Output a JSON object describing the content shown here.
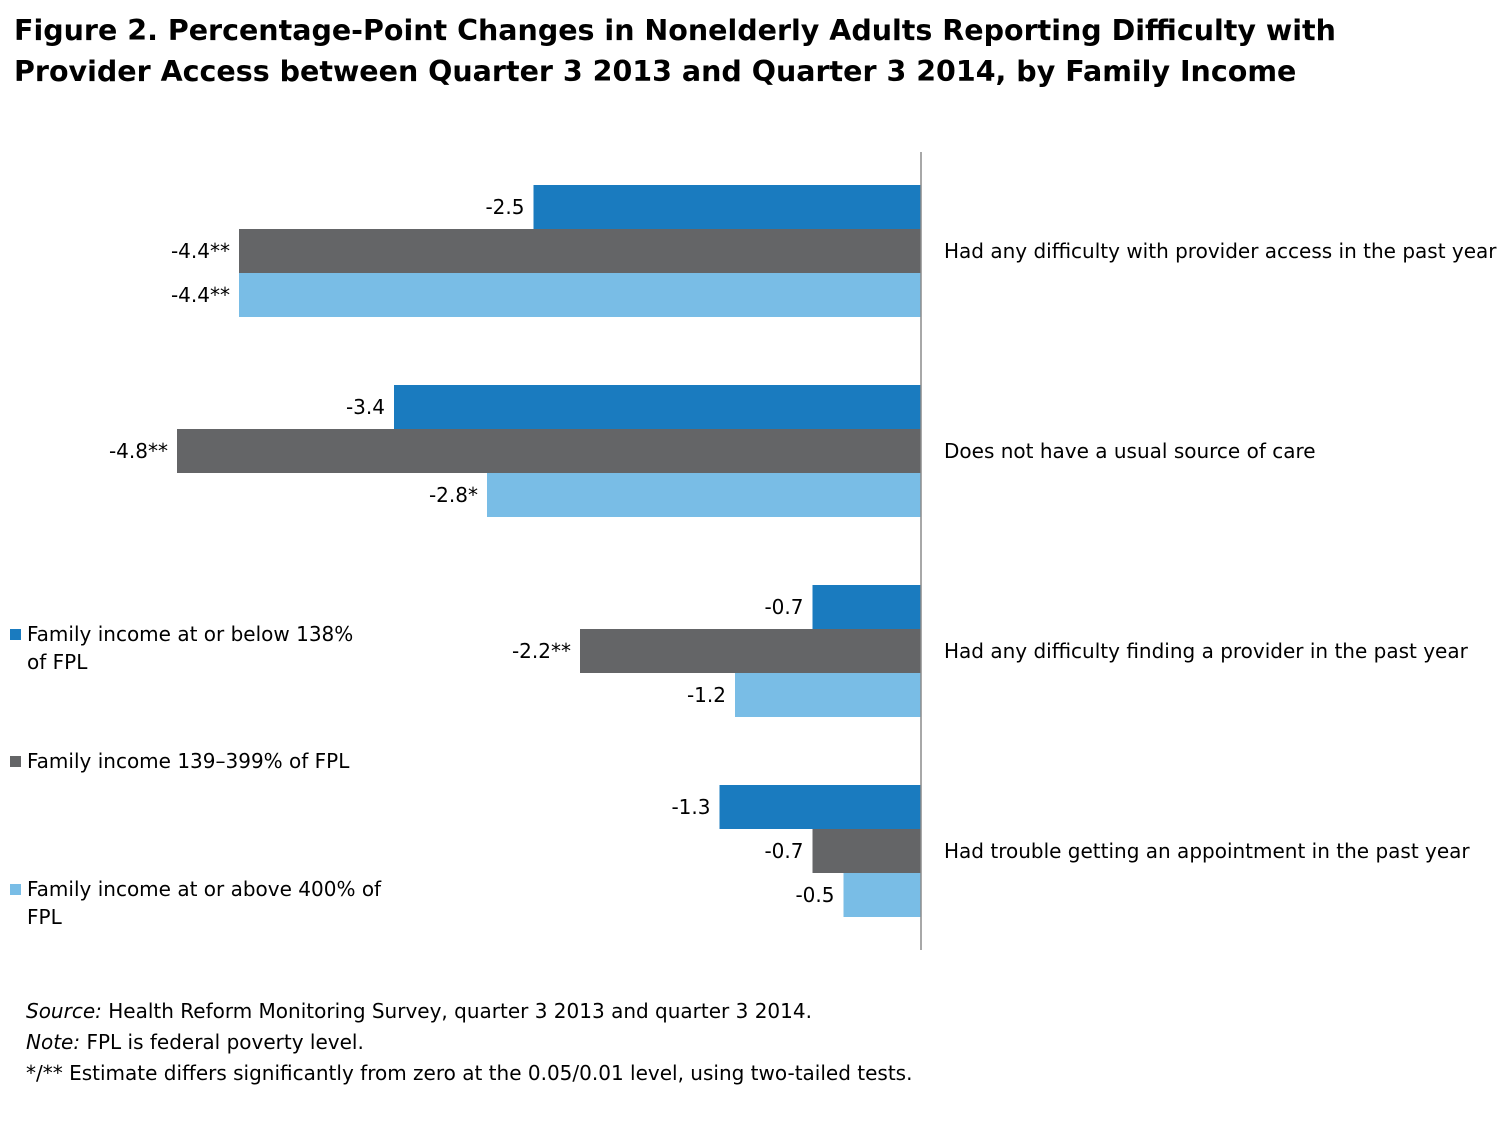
{
  "title": {
    "line1": "Figure 2. Percentage-Point Changes in Nonelderly Adults Reporting Difficulty with",
    "line2": "Provider Access between Quarter 3 2013 and Quarter 3 2014, by Family Income"
  },
  "chart_data": {
    "type": "bar",
    "orientation": "horizontal",
    "categories": [
      "Had any difficulty with provider access in the past year",
      "Does not have a usual source of care",
      "Had any difficulty finding a provider in the past year",
      "Had trouble getting an appointment in the past year"
    ],
    "series": [
      {
        "name": "Family income at or below 138% of FPL",
        "color": "#1a7bbf",
        "values": [
          -2.5,
          -3.4,
          -0.7,
          -1.3
        ],
        "labels": [
          "-2.5",
          "-3.4",
          "-0.7",
          "-1.3"
        ]
      },
      {
        "name": "Family income 139–399% of FPL",
        "color": "#646567",
        "values": [
          -4.4,
          -4.8,
          -2.2,
          -0.7
        ],
        "labels": [
          "-4.4**",
          "-4.8**",
          "-2.2**",
          "-0.7"
        ]
      },
      {
        "name": "Family income at or above 400% of FPL",
        "color": "#79bde6",
        "values": [
          -4.4,
          -2.8,
          -1.2,
          -0.5
        ],
        "labels": [
          "-4.4**",
          "-2.8*",
          "-1.2",
          "-0.5"
        ]
      }
    ],
    "xlim": [
      -4.8,
      0
    ],
    "grid": false,
    "legend": "left"
  },
  "legend": {
    "item1_line1": "Family income at or below 138%",
    "item1_line2": "of FPL",
    "item2": "Family income 139–399% of FPL",
    "item3_line1": "Family income at or above 400% of",
    "item3_line2": "FPL"
  },
  "notes": {
    "source_label": "Source:",
    "source_text": " Health Reform Monitoring Survey, quarter 3 2013 and quarter 3 2014.",
    "note_label": "Note:",
    "note_text": " FPL is federal poverty level.",
    "significance": "*/** Estimate differs significantly from zero at the 0.05/0.01 level, using two-tailed tests."
  }
}
